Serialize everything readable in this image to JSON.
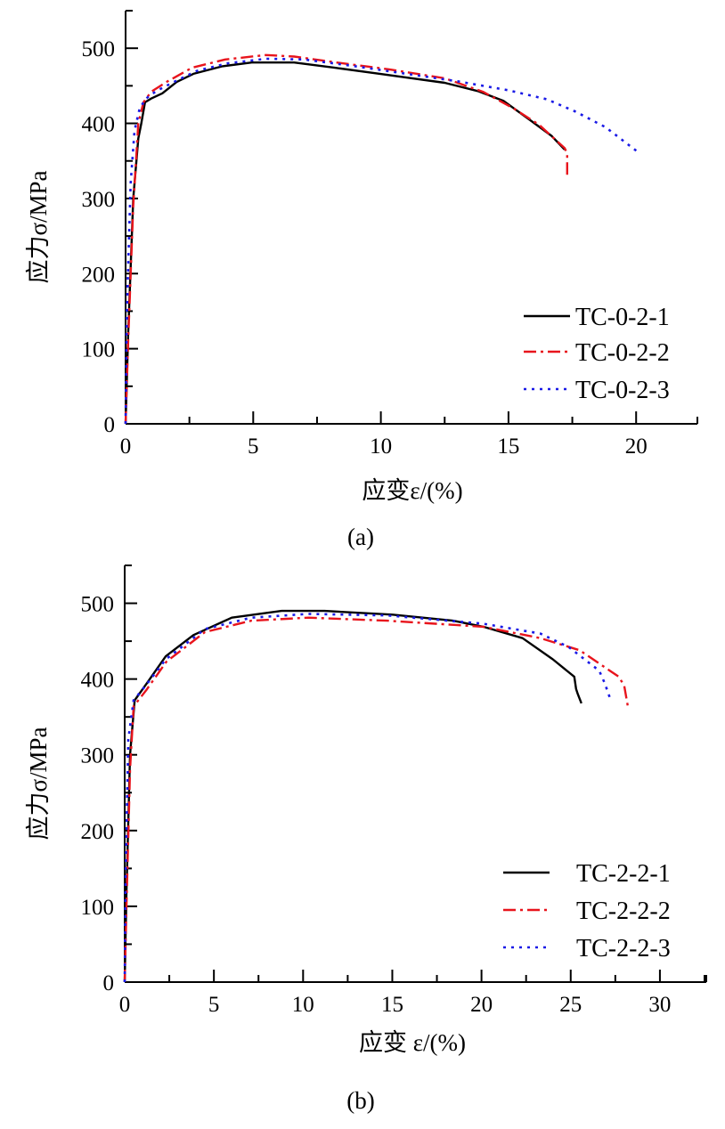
{
  "chart_data": [
    {
      "type": "line",
      "panel_label": "(a)",
      "xlabel": "应变ε/(%)",
      "ylabel": "应力σ/MPa",
      "xlim": [
        0,
        22.4
      ],
      "ylim": [
        0,
        550
      ],
      "xticks": [
        0,
        5,
        10,
        15,
        20
      ],
      "yticks": [
        0,
        100,
        200,
        300,
        400,
        500
      ],
      "legend_placement": "bottom-right",
      "series": [
        {
          "name": "TC-0-2-1",
          "color": "#000000",
          "style": "solid",
          "x": [
            0,
            0.1,
            0.3,
            0.5,
            0.61,
            0.76,
            1.0,
            1.44,
            2.0,
            2.66,
            3.8,
            4.94,
            6.6,
            8.2,
            9.96,
            12.5,
            13.8,
            14.8,
            15.9,
            16.7,
            17.2
          ],
          "y": [
            0,
            120,
            300,
            380,
            399,
            428,
            433,
            440,
            455,
            466,
            476,
            481,
            481,
            474,
            466,
            454,
            443,
            430,
            403,
            383,
            365
          ]
        },
        {
          "name": "TC-0-2-2",
          "color": "#e8141c",
          "style": "dashdot",
          "x": [
            0,
            0.1,
            0.3,
            0.5,
            0.7,
            1.0,
            1.6,
            2.6,
            3.9,
            5.5,
            6.6,
            8.5,
            10.3,
            12.5,
            14.0,
            15.2,
            16.2,
            17.2,
            17.3,
            17.3
          ],
          "y": [
            0,
            110,
            290,
            400,
            428,
            442,
            455,
            474,
            485,
            491,
            489,
            480,
            472,
            460,
            442,
            420,
            398,
            367,
            360,
            327
          ]
        },
        {
          "name": "TC-0-2-3",
          "color": "#1a1ae6",
          "style": "dotted",
          "x": [
            0,
            0.05,
            0.2,
            0.35,
            0.55,
            0.8,
            1.2,
            2.0,
            2.8,
            4.0,
            5.5,
            7.0,
            9.0,
            11.0,
            13.0,
            15.0,
            16.5,
            17.6,
            18.8,
            20.1
          ],
          "y": [
            0,
            150,
            320,
            390,
            420,
            433,
            443,
            457,
            470,
            480,
            486,
            485,
            476,
            466,
            456,
            444,
            432,
            416,
            395,
            361
          ]
        }
      ]
    },
    {
      "type": "line",
      "panel_label": "(b)",
      "xlabel": "应变 ε/(%)",
      "ylabel": "应力σ/MPa",
      "xlim": [
        0,
        32.6
      ],
      "ylim": [
        0,
        550
      ],
      "xticks": [
        0,
        5,
        10,
        15,
        20,
        25,
        30
      ],
      "yticks": [
        0,
        100,
        200,
        300,
        400,
        500
      ],
      "legend_placement": "bottom-right",
      "series": [
        {
          "name": "TC-2-2-1",
          "color": "#000000",
          "style": "solid",
          "x": [
            0,
            0.1,
            0.3,
            0.56,
            1.26,
            2.3,
            3.85,
            6.0,
            8.8,
            11.2,
            15.0,
            18.4,
            20.1,
            22.3,
            24.0,
            25.2,
            25.3,
            25.4,
            25.6
          ],
          "y": [
            0,
            120,
            300,
            372,
            395,
            430,
            458,
            481,
            490,
            490,
            485,
            477,
            469,
            454,
            426,
            403,
            387,
            380,
            368
          ]
        },
        {
          "name": "TC-2-2-2",
          "color": "#e8141c",
          "style": "dashdot",
          "x": [
            0,
            0.1,
            0.3,
            0.5,
            1.2,
            2.34,
            4.5,
            7.1,
            10.3,
            14.7,
            20.1,
            23.3,
            25.5,
            27.7,
            28.0,
            28.2
          ],
          "y": [
            0,
            100,
            280,
            364,
            385,
            423,
            462,
            477,
            481,
            477,
            469,
            454,
            438,
            403,
            391,
            364
          ]
        },
        {
          "name": "TC-2-2-3",
          "color": "#1a1ae6",
          "style": "dotted",
          "x": [
            0,
            0.05,
            0.2,
            0.5,
            1.2,
            2.3,
            4.5,
            7.1,
            10.3,
            14.7,
            20.1,
            23.3,
            24.9,
            26.6,
            26.9,
            27.2
          ],
          "y": [
            0,
            140,
            320,
            372,
            392,
            426,
            466,
            481,
            486,
            484,
            473,
            460,
            442,
            411,
            395,
            375
          ]
        }
      ]
    }
  ]
}
